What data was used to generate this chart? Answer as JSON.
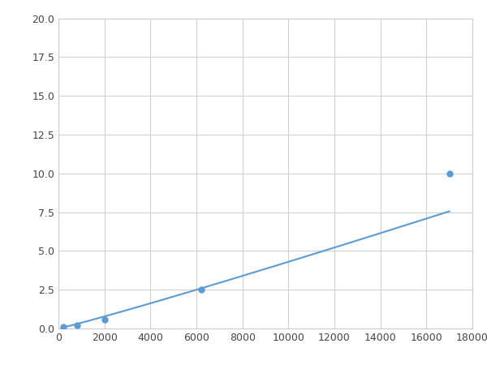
{
  "x_points": [
    200,
    800,
    2000,
    6200,
    17000
  ],
  "y_points": [
    0.1,
    0.2,
    0.6,
    2.5,
    10.0
  ],
  "line_color": "#5b9bd5",
  "marker_color": "#5b9bd5",
  "marker_size": 5,
  "xlim": [
    0,
    18000
  ],
  "ylim": [
    0,
    20
  ],
  "xticks": [
    0,
    2000,
    4000,
    6000,
    8000,
    10000,
    12000,
    14000,
    16000,
    18000
  ],
  "yticks": [
    0.0,
    2.5,
    5.0,
    7.5,
    10.0,
    12.5,
    15.0,
    17.5,
    20.0
  ],
  "grid_color": "#d0d0d0",
  "background_color": "#ffffff",
  "spine_color": "#cccccc",
  "figsize": [
    6.0,
    4.5
  ],
  "dpi": 100
}
